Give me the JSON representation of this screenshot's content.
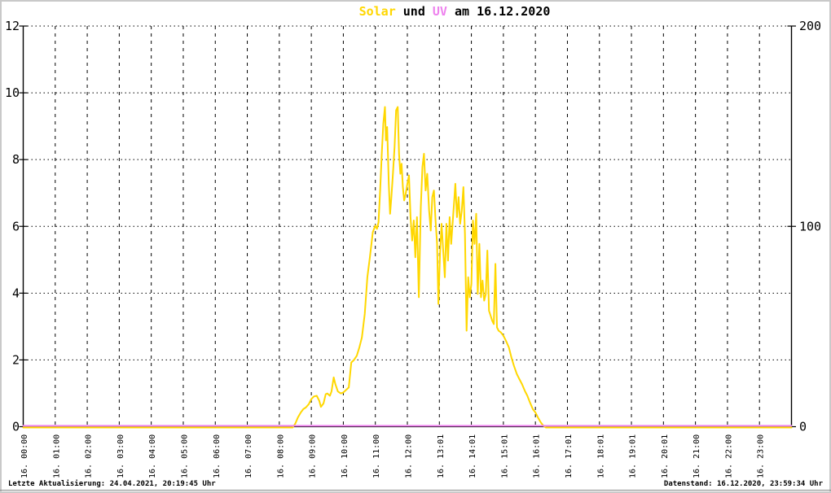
{
  "title": {
    "solar": "Solar",
    "und": " und ",
    "uv": "UV",
    "date_part": " am 16.12.2020",
    "full": "Solar und UV am 16.12.2020"
  },
  "colors": {
    "solar": "#FFD700",
    "uv": "#EE82EE",
    "axis": "#000000",
    "grid": "#000000",
    "background": "#FFFFFF"
  },
  "statusbar": {
    "left": "Letzte Aktualisierung: 24.04.2021, 20:19:45 Uhr",
    "right": "Datenstand: 16.12.2020, 23:59:34 Uhr"
  },
  "chart_data": {
    "type": "line",
    "title": "Solar und UV am 16.12.2020",
    "grid": true,
    "legend": "none (series named in title)",
    "left_axis": {
      "label": "",
      "range": [
        0,
        12
      ],
      "ticks": [
        0,
        2,
        4,
        6,
        8,
        10,
        12
      ],
      "series": "Solar"
    },
    "right_axis": {
      "label": "",
      "range": [
        0,
        200
      ],
      "ticks": [
        0,
        100,
        200
      ],
      "series": "UV"
    },
    "x_axis": {
      "range_hours": [
        0,
        24
      ],
      "labels": [
        "16. 00:00",
        "16. 01:00",
        "16. 02:00",
        "16. 03:00",
        "16. 04:00",
        "16. 05:00",
        "16. 06:00",
        "16. 07:00",
        "16. 08:00",
        "16. 09:00",
        "16. 10:00",
        "16. 11:00",
        "16. 12:00",
        "16. 13:01",
        "16. 14:01",
        "16. 15:01",
        "16. 16:01",
        "16. 17:01",
        "16. 18:01",
        "16. 19:01",
        "16. 20:01",
        "16. 21:00",
        "16. 22:00",
        "16. 23:00"
      ]
    },
    "series": [
      {
        "name": "Solar",
        "color": "#FFD700",
        "axis": "left",
        "points": [
          [
            0,
            0
          ],
          [
            8.42,
            0
          ],
          [
            8.5,
            0.12
          ],
          [
            8.58,
            0.3
          ],
          [
            8.67,
            0.45
          ],
          [
            8.75,
            0.55
          ],
          [
            8.83,
            0.6
          ],
          [
            8.92,
            0.7
          ],
          [
            9.0,
            0.85
          ],
          [
            9.08,
            0.93
          ],
          [
            9.17,
            0.95
          ],
          [
            9.25,
            0.8
          ],
          [
            9.3,
            0.62
          ],
          [
            9.38,
            0.72
          ],
          [
            9.45,
            1.0
          ],
          [
            9.5,
            1.02
          ],
          [
            9.58,
            0.95
          ],
          [
            9.63,
            1.08
          ],
          [
            9.7,
            1.5
          ],
          [
            9.75,
            1.3
          ],
          [
            9.83,
            1.08
          ],
          [
            9.92,
            1.02
          ],
          [
            10.0,
            1.05
          ],
          [
            10.08,
            1.12
          ],
          [
            10.17,
            1.2
          ],
          [
            10.25,
            1.95
          ],
          [
            10.33,
            2.02
          ],
          [
            10.42,
            2.15
          ],
          [
            10.5,
            2.4
          ],
          [
            10.58,
            2.7
          ],
          [
            10.67,
            3.4
          ],
          [
            10.75,
            4.5
          ],
          [
            10.83,
            5.1
          ],
          [
            10.92,
            5.85
          ],
          [
            11.0,
            6.05
          ],
          [
            11.05,
            5.95
          ],
          [
            11.1,
            6.15
          ],
          [
            11.15,
            7.1
          ],
          [
            11.2,
            8.2
          ],
          [
            11.25,
            9.1
          ],
          [
            11.3,
            9.6
          ],
          [
            11.33,
            8.6
          ],
          [
            11.37,
            9.0
          ],
          [
            11.42,
            7.3
          ],
          [
            11.46,
            6.4
          ],
          [
            11.5,
            6.9
          ],
          [
            11.55,
            7.6
          ],
          [
            11.6,
            8.4
          ],
          [
            11.65,
            9.5
          ],
          [
            11.7,
            9.6
          ],
          [
            11.74,
            8.2
          ],
          [
            11.78,
            7.6
          ],
          [
            11.82,
            7.9
          ],
          [
            11.86,
            7.2
          ],
          [
            11.9,
            6.8
          ],
          [
            11.95,
            7.0
          ],
          [
            12.0,
            7.3
          ],
          [
            12.05,
            7.55
          ],
          [
            12.1,
            6.3
          ],
          [
            12.15,
            5.6
          ],
          [
            12.2,
            6.2
          ],
          [
            12.25,
            5.1
          ],
          [
            12.3,
            6.3
          ],
          [
            12.36,
            3.9
          ],
          [
            12.42,
            6.6
          ],
          [
            12.47,
            7.8
          ],
          [
            12.52,
            8.2
          ],
          [
            12.57,
            7.1
          ],
          [
            12.62,
            7.6
          ],
          [
            12.68,
            6.5
          ],
          [
            12.73,
            5.9
          ],
          [
            12.78,
            6.9
          ],
          [
            12.83,
            7.1
          ],
          [
            12.88,
            6.2
          ],
          [
            12.93,
            5.5
          ],
          [
            12.97,
            3.7
          ],
          [
            13.02,
            5.2
          ],
          [
            13.07,
            6.1
          ],
          [
            13.12,
            5.3
          ],
          [
            13.17,
            4.5
          ],
          [
            13.22,
            6.1
          ],
          [
            13.27,
            5.0
          ],
          [
            13.32,
            6.3
          ],
          [
            13.37,
            5.5
          ],
          [
            13.42,
            6.2
          ],
          [
            13.47,
            6.9
          ],
          [
            13.5,
            7.3
          ],
          [
            13.55,
            6.3
          ],
          [
            13.6,
            6.9
          ],
          [
            13.65,
            6.1
          ],
          [
            13.7,
            6.5
          ],
          [
            13.75,
            7.2
          ],
          [
            13.8,
            5.8
          ],
          [
            13.85,
            2.9
          ],
          [
            13.9,
            4.5
          ],
          [
            13.95,
            3.9
          ],
          [
            14.0,
            4.3
          ],
          [
            14.05,
            6.2
          ],
          [
            14.1,
            5.5
          ],
          [
            14.15,
            6.4
          ],
          [
            14.2,
            4.0
          ],
          [
            14.25,
            5.5
          ],
          [
            14.3,
            3.9
          ],
          [
            14.35,
            4.4
          ],
          [
            14.4,
            3.8
          ],
          [
            14.45,
            4.0
          ],
          [
            14.5,
            5.3
          ],
          [
            14.55,
            3.5
          ],
          [
            14.6,
            3.35
          ],
          [
            14.65,
            3.2
          ],
          [
            14.7,
            3.1
          ],
          [
            14.75,
            4.9
          ],
          [
            14.8,
            3.0
          ],
          [
            14.85,
            2.9
          ],
          [
            14.92,
            2.85
          ],
          [
            15.0,
            2.75
          ],
          [
            15.08,
            2.6
          ],
          [
            15.17,
            2.4
          ],
          [
            15.25,
            2.1
          ],
          [
            15.33,
            1.85
          ],
          [
            15.42,
            1.6
          ],
          [
            15.5,
            1.45
          ],
          [
            15.58,
            1.3
          ],
          [
            15.67,
            1.1
          ],
          [
            15.75,
            0.95
          ],
          [
            15.83,
            0.75
          ],
          [
            15.92,
            0.55
          ],
          [
            16.0,
            0.45
          ],
          [
            16.08,
            0.3
          ],
          [
            16.17,
            0.15
          ],
          [
            16.25,
            0.05
          ],
          [
            16.33,
            0
          ],
          [
            24,
            0
          ]
        ]
      },
      {
        "name": "UV",
        "color": "#EE82EE",
        "axis": "right",
        "points": [
          [
            0,
            0
          ],
          [
            24,
            0
          ]
        ]
      }
    ]
  }
}
